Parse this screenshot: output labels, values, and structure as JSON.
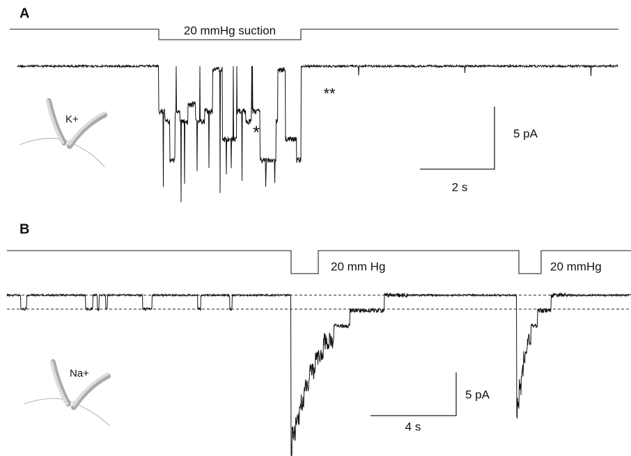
{
  "panels": [
    {
      "label": "A",
      "stimulus_label": "20 mmHg suction",
      "ion_label": "K+",
      "annotations": [
        "*",
        "**"
      ],
      "scale_y": "5 pA",
      "scale_x": "2 s"
    },
    {
      "label": "B",
      "stimulus_labels": [
        "20 mm Hg",
        "20 mmHg"
      ],
      "ion_label": "Na+",
      "scale_y": "5 pA",
      "scale_x": "4 s"
    }
  ]
}
